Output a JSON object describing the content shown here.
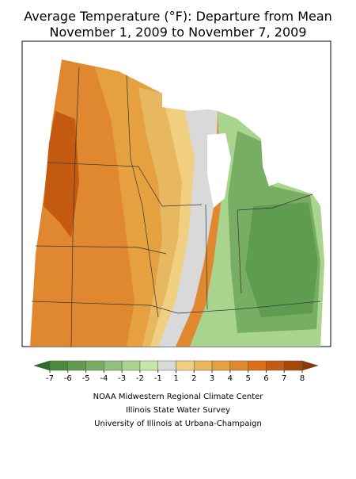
{
  "header": {
    "title": "Average Temperature (°F): Departure from Mean",
    "subtitle": "November 1, 2009 to November 7, 2009"
  },
  "legend": {
    "ticks": [
      -7,
      -6,
      -5,
      -4,
      -3,
      -2,
      -1,
      1,
      2,
      3,
      4,
      5,
      6,
      7,
      8
    ],
    "colors": [
      "#2f6e28",
      "#4a8a3d",
      "#5f9c50",
      "#78ae64",
      "#90c07a",
      "#a8d48e",
      "#c4e6a8",
      "#d9d9d9",
      "#f0d080",
      "#e8b860",
      "#e5a040",
      "#e08830",
      "#dc7018",
      "#c45a10",
      "#a84808",
      "#8c3a05"
    ]
  },
  "credits": [
    "NOAA Midwestern Regional Climate Center",
    "Illinois State Water Survey",
    "University of Illinois at Urbana-Champaign"
  ]
}
